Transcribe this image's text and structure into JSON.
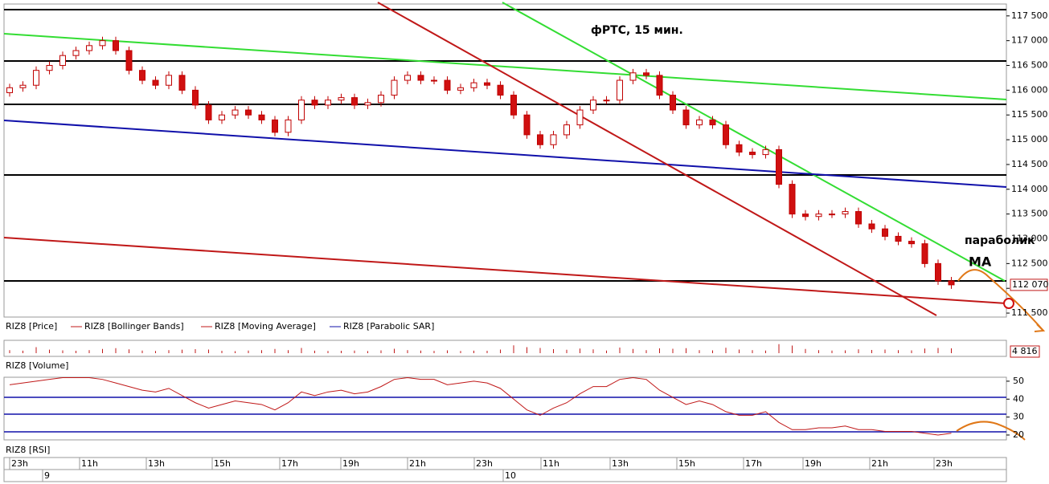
{
  "chart_data": {
    "type": "candlestick",
    "title": "фРТС, 15 мин.",
    "annotations": [
      "параболик",
      "МА"
    ],
    "legend": [
      "RIZ8 [Price]",
      "RIZ8 [Bollinger Bands]",
      "RIZ8 [Moving Average]",
      "RIZ8 [Parabolic SAR]"
    ],
    "up_color": "#ffffff",
    "down_color": "#d01010",
    "outline_color": "#c00000",
    "candles": [
      [
        115950,
        116130,
        115870,
        116050
      ],
      [
        116050,
        116180,
        115970,
        116100
      ],
      [
        116100,
        116480,
        116020,
        116400
      ],
      [
        116400,
        116580,
        116320,
        116500
      ],
      [
        116500,
        116780,
        116420,
        116700
      ],
      [
        116700,
        116880,
        116620,
        116800
      ],
      [
        116800,
        116980,
        116720,
        116900
      ],
      [
        116900,
        117080,
        116820,
        117000
      ],
      [
        117000,
        117080,
        116720,
        116800
      ],
      [
        116800,
        116880,
        116320,
        116400
      ],
      [
        116400,
        116480,
        116120,
        116200
      ],
      [
        116200,
        116280,
        116020,
        116100
      ],
      [
        116100,
        116380,
        116020,
        116300
      ],
      [
        116300,
        116380,
        115920,
        116000
      ],
      [
        116000,
        116080,
        115620,
        115700
      ],
      [
        115700,
        115780,
        115320,
        115400
      ],
      [
        115400,
        115580,
        115320,
        115500
      ],
      [
        115500,
        115680,
        115420,
        115600
      ],
      [
        115600,
        115680,
        115420,
        115500
      ],
      [
        115500,
        115580,
        115320,
        115400
      ],
      [
        115400,
        115480,
        115070,
        115150
      ],
      [
        115150,
        115480,
        115070,
        115400
      ],
      [
        115400,
        115880,
        115320,
        115800
      ],
      [
        115800,
        115880,
        115620,
        115700
      ],
      [
        115700,
        115880,
        115620,
        115800
      ],
      [
        115800,
        115930,
        115720,
        115850
      ],
      [
        115850,
        115930,
        115620,
        115700
      ],
      [
        115700,
        115830,
        115620,
        115750
      ],
      [
        115750,
        115980,
        115670,
        115900
      ],
      [
        115900,
        116280,
        115820,
        116200
      ],
      [
        116200,
        116380,
        116120,
        116300
      ],
      [
        116300,
        116380,
        116120,
        116200
      ],
      [
        116200,
        116280,
        116120,
        116200
      ],
      [
        116200,
        116280,
        115920,
        116000
      ],
      [
        116000,
        116130,
        115920,
        116050
      ],
      [
        116050,
        116230,
        115970,
        116150
      ],
      [
        116150,
        116230,
        116020,
        116100
      ],
      [
        116100,
        116180,
        115820,
        115900
      ],
      [
        115900,
        115980,
        115420,
        115500
      ],
      [
        115500,
        115580,
        115020,
        115100
      ],
      [
        115100,
        115180,
        114820,
        114900
      ],
      [
        114900,
        115180,
        114820,
        115100
      ],
      [
        115100,
        115380,
        115020,
        115300
      ],
      [
        115300,
        115680,
        115220,
        115600
      ],
      [
        115600,
        115880,
        115520,
        115800
      ],
      [
        115800,
        115880,
        115720,
        115800
      ],
      [
        115800,
        116280,
        115720,
        116200
      ],
      [
        116200,
        116430,
        116120,
        116350
      ],
      [
        116350,
        116430,
        116220,
        116300
      ],
      [
        116300,
        116380,
        115820,
        115900
      ],
      [
        115900,
        115980,
        115520,
        115600
      ],
      [
        115600,
        115680,
        115220,
        115300
      ],
      [
        115300,
        115480,
        115220,
        115400
      ],
      [
        115400,
        115480,
        115220,
        115300
      ],
      [
        115300,
        115380,
        114820,
        114900
      ],
      [
        114900,
        114980,
        114670,
        114750
      ],
      [
        114750,
        114830,
        114620,
        114700
      ],
      [
        114700,
        114880,
        114620,
        114800
      ],
      [
        114800,
        114880,
        114020,
        114100
      ],
      [
        114100,
        114180,
        113420,
        113500
      ],
      [
        113500,
        113580,
        113370,
        113450
      ],
      [
        113450,
        113580,
        113370,
        113500
      ],
      [
        113500,
        113580,
        113420,
        113500
      ],
      [
        113500,
        113630,
        113420,
        113550
      ],
      [
        113550,
        113630,
        113220,
        113300
      ],
      [
        113300,
        113380,
        113120,
        113200
      ],
      [
        113200,
        113280,
        112970,
        113050
      ],
      [
        113050,
        113130,
        112870,
        112950
      ],
      [
        112950,
        113030,
        112820,
        112900
      ],
      [
        112900,
        112980,
        112420,
        112500
      ],
      [
        112500,
        112580,
        112070,
        112150
      ],
      [
        112150,
        112230,
        111990,
        112070
      ]
    ],
    "ylim": [
      111420,
      117740
    ],
    "yticks": [
      {
        "value": 111500,
        "label": "111 500"
      },
      {
        "value": 112000,
        "label": "112 000"
      },
      {
        "value": 112500,
        "label": "112 500"
      },
      {
        "value": 113000,
        "label": "113 000"
      },
      {
        "value": 113500,
        "label": "113 500"
      },
      {
        "value": 114000,
        "label": "114 000"
      },
      {
        "value": 114500,
        "label": "114 500"
      },
      {
        "value": 115000,
        "label": "115 000"
      },
      {
        "value": 115500,
        "label": "115 500"
      },
      {
        "value": 116000,
        "label": "116 000"
      },
      {
        "value": 116500,
        "label": "116 500"
      },
      {
        "value": 117000,
        "label": "117 000"
      },
      {
        "value": 117500,
        "label": "117 500"
      }
    ],
    "last_price": {
      "value": 112070,
      "label": "112 070"
    },
    "volume_title": "RIZ8 [Volume]",
    "volume": [
      3000,
      2500,
      6000,
      3500,
      2800,
      2400,
      3000,
      4200,
      5000,
      3800,
      2600,
      2200,
      3000,
      3500,
      4000,
      3600,
      2400,
      2000,
      2600,
      3000,
      4200,
      3000,
      5200,
      2500,
      2200,
      2400,
      2600,
      2100,
      2800,
      4400,
      3000,
      2600,
      2300,
      2800,
      2200,
      2500,
      2400,
      3600,
      7800,
      6000,
      5200,
      4000,
      3400,
      4600,
      3800,
      2600,
      5600,
      4200,
      3000,
      4800,
      4400,
      5000,
      3000,
      2800,
      5400,
      3600,
      3000,
      2600,
      9000,
      7600,
      4200,
      3000,
      2600,
      2800,
      3800,
      3200,
      3600,
      3000,
      2800,
      4600,
      5200,
      4816
    ],
    "volume_ylim": [
      0,
      12000
    ],
    "volume_label": {
      "value": 4816,
      "label": "4 816"
    },
    "rsi_title": "RIZ8 [RSI]",
    "rsi": [
      48,
      49,
      50,
      51,
      52,
      52,
      52,
      51,
      49,
      47,
      45,
      44,
      46,
      42,
      38,
      35,
      37,
      39,
      38,
      37,
      34,
      38,
      44,
      42,
      44,
      45,
      43,
      44,
      47,
      51,
      52,
      51,
      51,
      48,
      49,
      50,
      49,
      46,
      40,
      34,
      31,
      35,
      38,
      43,
      47,
      47,
      51,
      52,
      51,
      45,
      41,
      37,
      39,
      37,
      33,
      31,
      31,
      33,
      27,
      23,
      23,
      24,
      24,
      25,
      23,
      23,
      22,
      22,
      22,
      21,
      20,
      21
    ],
    "rsi_ylim": [
      17.3,
      52.2
    ],
    "rsi_ticks": [
      20,
      30,
      40,
      50
    ],
    "time_labels": [
      "23h",
      "11h",
      "13h",
      "15h",
      "17h",
      "19h",
      "21h",
      "23h",
      "11h",
      "13h",
      "15h",
      "17h",
      "19h",
      "21h",
      "23h"
    ],
    "date_labels": [
      "9",
      "10"
    ]
  }
}
